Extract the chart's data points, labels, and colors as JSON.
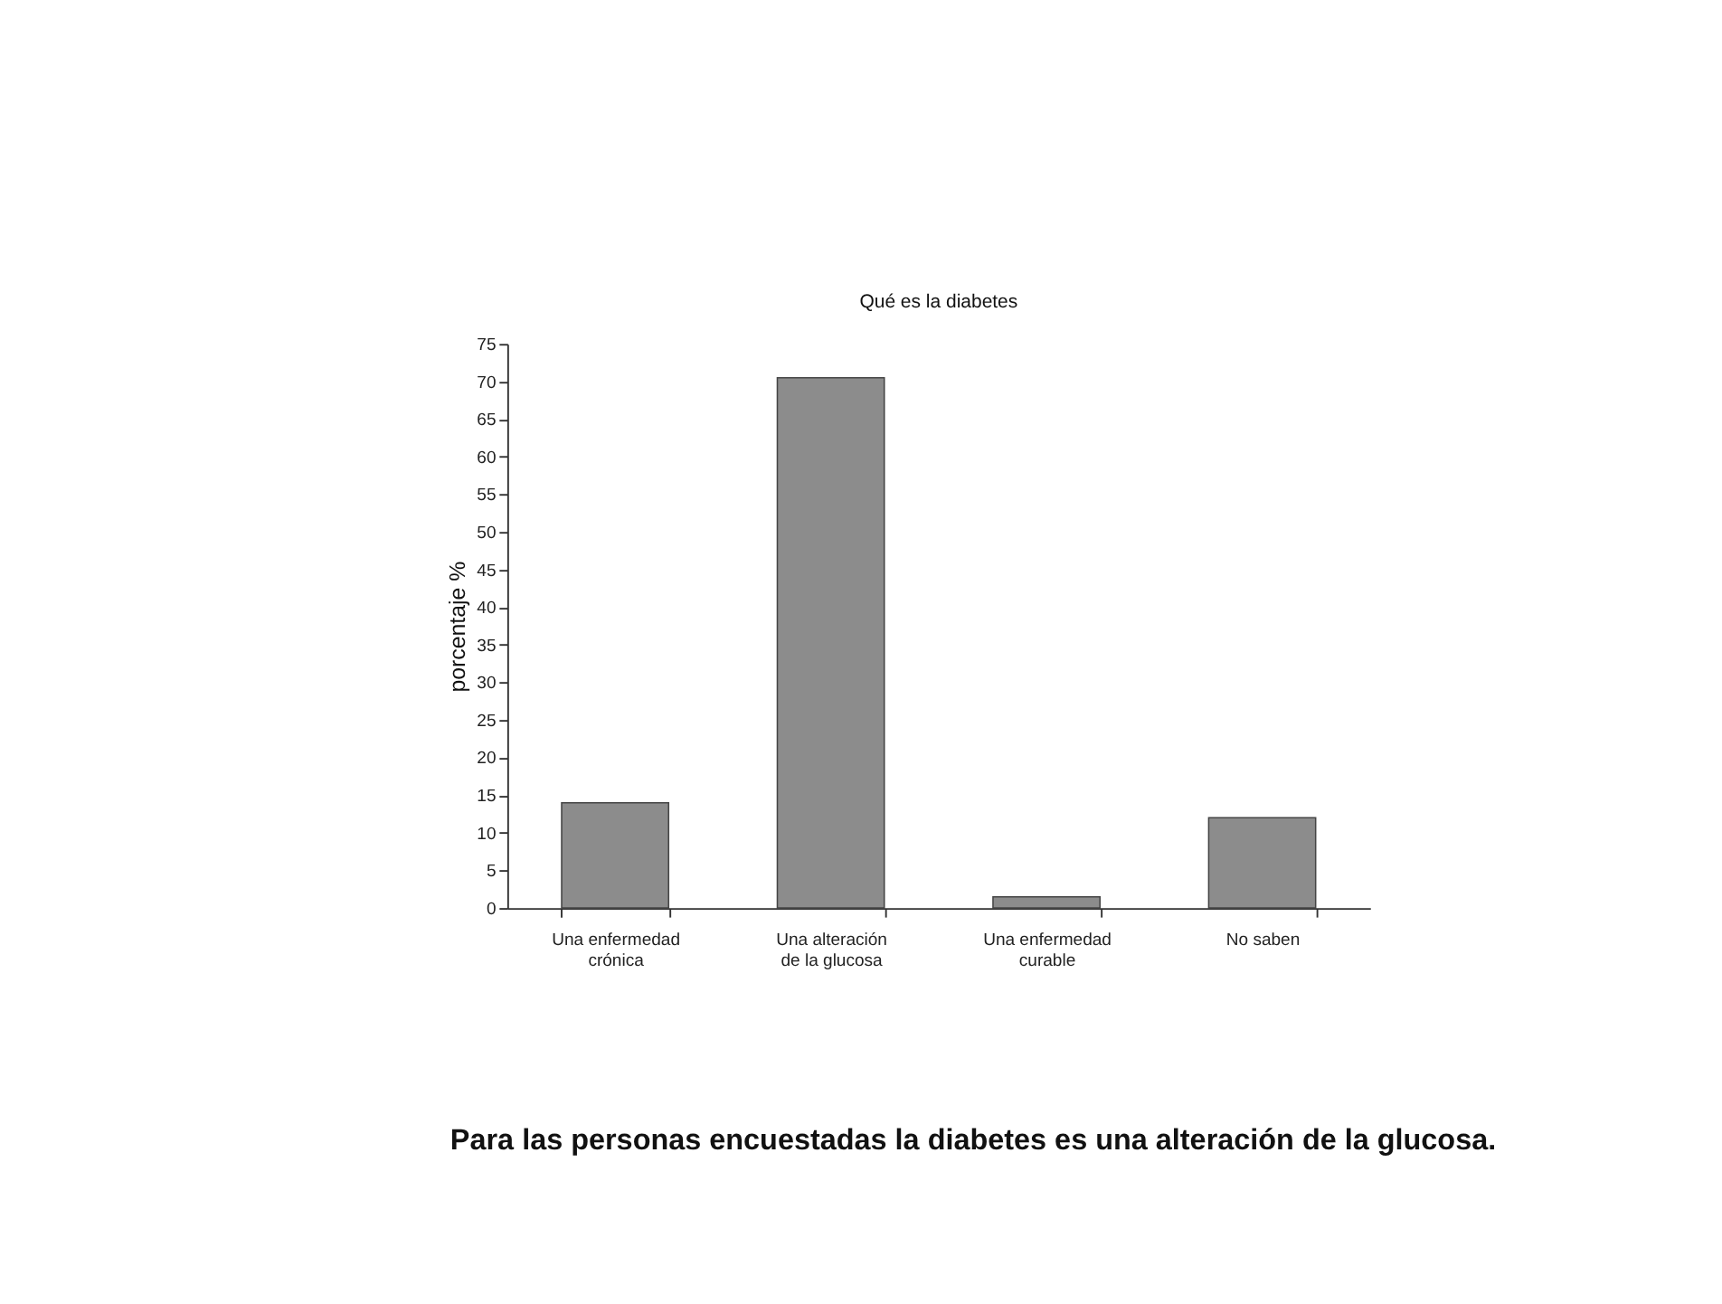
{
  "chart_data": {
    "type": "bar",
    "title": "Qué es la diabetes",
    "ylabel": "porcentaje %",
    "categories": [
      "Una enfermedad crónica",
      "Una alteración de la glucosa",
      "Una enfermedad curable",
      "No saben"
    ],
    "values": [
      14,
      70.5,
      1.5,
      12
    ],
    "color": "#8c8c8c",
    "ylim": [
      0,
      75
    ],
    "yticks": [
      0,
      5,
      10,
      15,
      20,
      25,
      30,
      35,
      40,
      45,
      50,
      55,
      60,
      65,
      70,
      75
    ],
    "grid": false,
    "annotations": [
      "Para las personas encuestadas la diabetes es una alteración de la glucosa."
    ]
  }
}
